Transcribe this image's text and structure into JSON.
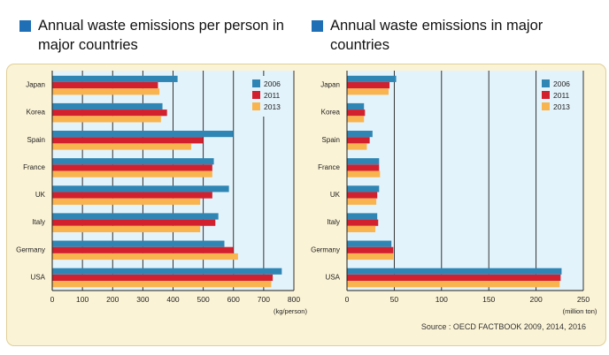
{
  "colors": {
    "title_square": "#1f6fb6",
    "plot_bg": "#e3f3fb",
    "2006": "#2f86b5",
    "2011": "#d3202f",
    "2013": "#f9b44f"
  },
  "titles": {
    "left": "Annual waste emissions per person in major countries",
    "right": "Annual waste emissions in major countries"
  },
  "source": "Source : OECD FACTBOOK 2009, 2014, 2016",
  "chart_data": [
    {
      "type": "bar",
      "orientation": "horizontal",
      "title": "Annual waste emissions per person in major countries",
      "categories": [
        "Japan",
        "Korea",
        "Spain",
        "France",
        "UK",
        "Italy",
        "Germany",
        "USA"
      ],
      "series": [
        {
          "name": "2006",
          "values": [
            415,
            365,
            600,
            535,
            585,
            550,
            570,
            760
          ]
        },
        {
          "name": "2011",
          "values": [
            350,
            380,
            500,
            530,
            530,
            540,
            600,
            730
          ]
        },
        {
          "name": "2013",
          "values": [
            355,
            360,
            460,
            530,
            490,
            490,
            615,
            725
          ]
        }
      ],
      "xlim": [
        0,
        800
      ],
      "xticks": [
        0,
        100,
        200,
        300,
        400,
        500,
        600,
        700,
        800
      ],
      "xlabel": "(kg/person)",
      "legend": "top-right"
    },
    {
      "type": "bar",
      "orientation": "horizontal",
      "title": "Annual waste emissions in major countries",
      "categories": [
        "Japan",
        "Korea",
        "Spain",
        "France",
        "UK",
        "Italy",
        "Germany",
        "USA"
      ],
      "series": [
        {
          "name": "2006",
          "values": [
            52,
            18,
            27,
            34,
            34,
            32,
            47,
            227
          ]
        },
        {
          "name": "2011",
          "values": [
            45,
            19,
            24,
            34,
            32,
            33,
            49,
            226
          ]
        },
        {
          "name": "2013",
          "values": [
            44,
            18,
            21,
            35,
            31,
            30,
            49,
            225
          ]
        }
      ],
      "xlim": [
        0,
        250
      ],
      "xticks": [
        0,
        50,
        100,
        150,
        200,
        250
      ],
      "xlabel": "(million ton)",
      "legend": "top-right"
    }
  ]
}
